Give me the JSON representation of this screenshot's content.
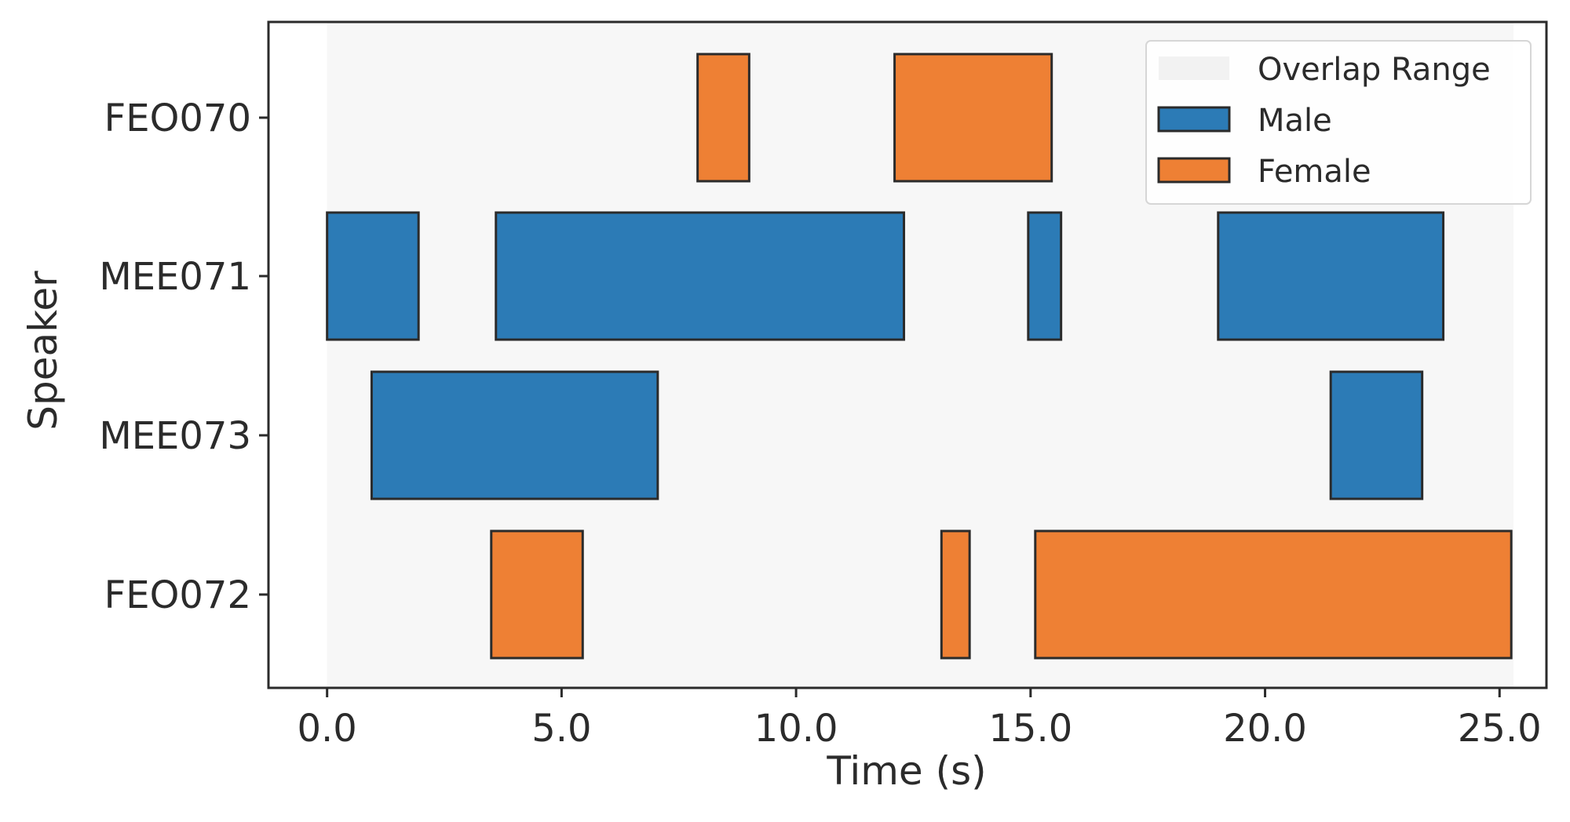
{
  "chart_data": {
    "type": "gantt",
    "title": "",
    "xlabel": "Time (s)",
    "ylabel": "Speaker",
    "xlim": [
      -1.25,
      26.0
    ],
    "x_ticks": [
      0.0,
      5.0,
      10.0,
      15.0,
      20.0,
      25.0
    ],
    "x_tick_labels": [
      "0.0",
      "5.0",
      "10.0",
      "15.0",
      "20.0",
      "25.0"
    ],
    "grid": false,
    "legend_position": "top-right",
    "overlap_range": [
      0.0,
      25.3
    ],
    "categories": [
      "FEO070",
      "MEE071",
      "MEE073",
      "FEO072"
    ],
    "series": [
      {
        "name": "Male",
        "color": "#2c7bb6",
        "segments": [
          {
            "speaker": "MEE071",
            "start": 0.0,
            "end": 1.95
          },
          {
            "speaker": "MEE071",
            "start": 3.6,
            "end": 12.3
          },
          {
            "speaker": "MEE071",
            "start": 14.95,
            "end": 15.65
          },
          {
            "speaker": "MEE071",
            "start": 19.0,
            "end": 23.8
          },
          {
            "speaker": "MEE073",
            "start": 0.95,
            "end": 7.05
          },
          {
            "speaker": "MEE073",
            "start": 21.4,
            "end": 23.35
          }
        ]
      },
      {
        "name": "Female",
        "color": "#ee8034",
        "segments": [
          {
            "speaker": "FEO070",
            "start": 7.9,
            "end": 9.0
          },
          {
            "speaker": "FEO070",
            "start": 12.1,
            "end": 15.45
          },
          {
            "speaker": "FEO072",
            "start": 3.5,
            "end": 5.45
          },
          {
            "speaker": "FEO072",
            "start": 13.1,
            "end": 13.7
          },
          {
            "speaker": "FEO072",
            "start": 15.1,
            "end": 25.25
          }
        ]
      }
    ],
    "legend": [
      {
        "label": "Overlap Range",
        "color": "#f2f2f2"
      },
      {
        "label": "Male",
        "color": "#2c7bb6"
      },
      {
        "label": "Female",
        "color": "#ee8034"
      }
    ],
    "overlap_color": "#f7f7f7",
    "edge_color": "#2b2b2b"
  }
}
